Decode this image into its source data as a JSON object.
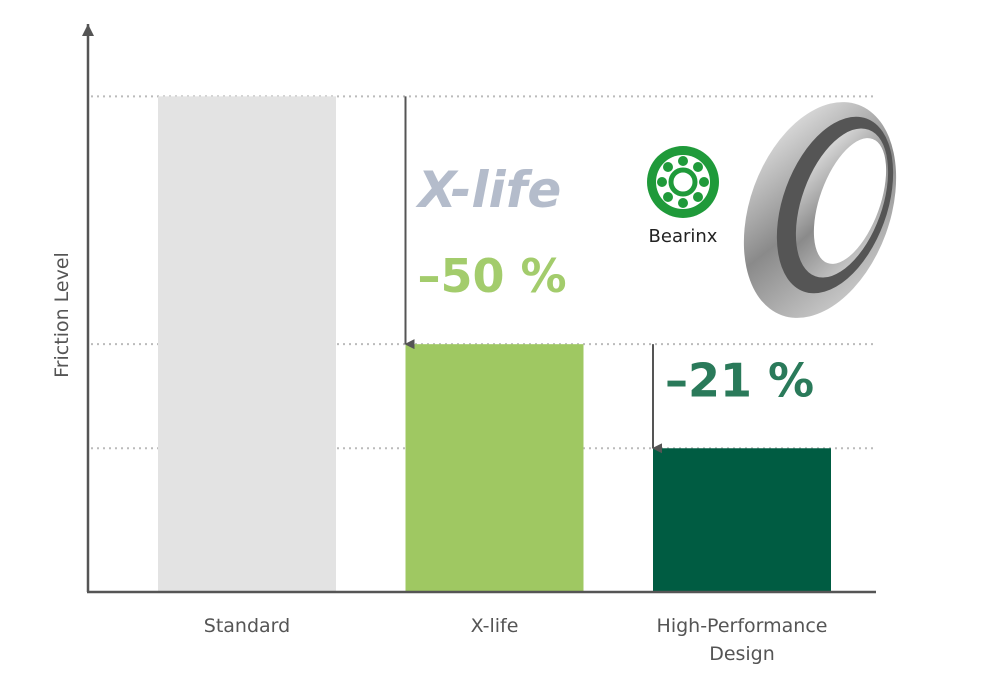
{
  "chart_data": {
    "type": "bar",
    "y_label": "Friction Level",
    "categories": [
      "Standard",
      "X-life",
      "High-Performance Design"
    ],
    "values": [
      100,
      50,
      29
    ],
    "colors": [
      "#e3e3e3",
      "#9fc862",
      "#005c42"
    ],
    "ylim": [
      0,
      115
    ],
    "grid": true,
    "annotations": [
      {
        "text": "–50 %",
        "color": "#a3cc6c"
      },
      {
        "text": "–21 %",
        "color": "#2a7a5a"
      }
    ],
    "logo_text": "X-life",
    "brand": "Bearinx"
  }
}
